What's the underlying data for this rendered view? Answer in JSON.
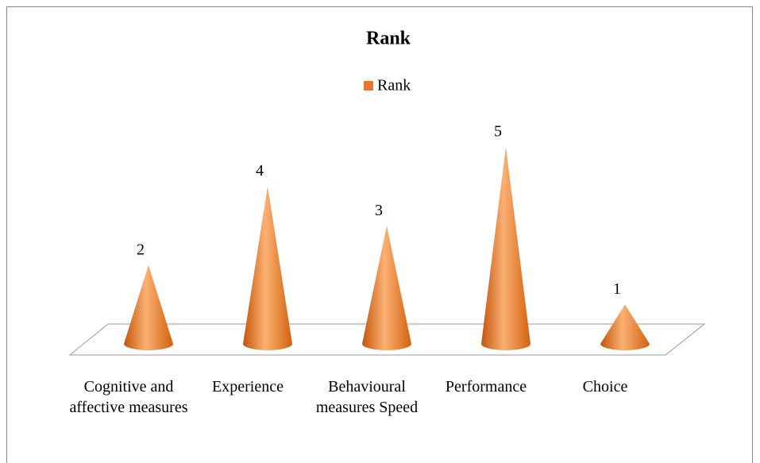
{
  "chart_data": {
    "type": "bar",
    "title": "Rank",
    "categories": [
      "Cognitive and affective measures",
      "Experience",
      "Behavioural measures Speed",
      "Performance",
      "Choice"
    ],
    "series": [
      {
        "name": "Rank",
        "color": "#e8782a",
        "values": [
          2,
          4,
          3,
          5,
          1
        ]
      }
    ],
    "legend": "top"
  }
}
